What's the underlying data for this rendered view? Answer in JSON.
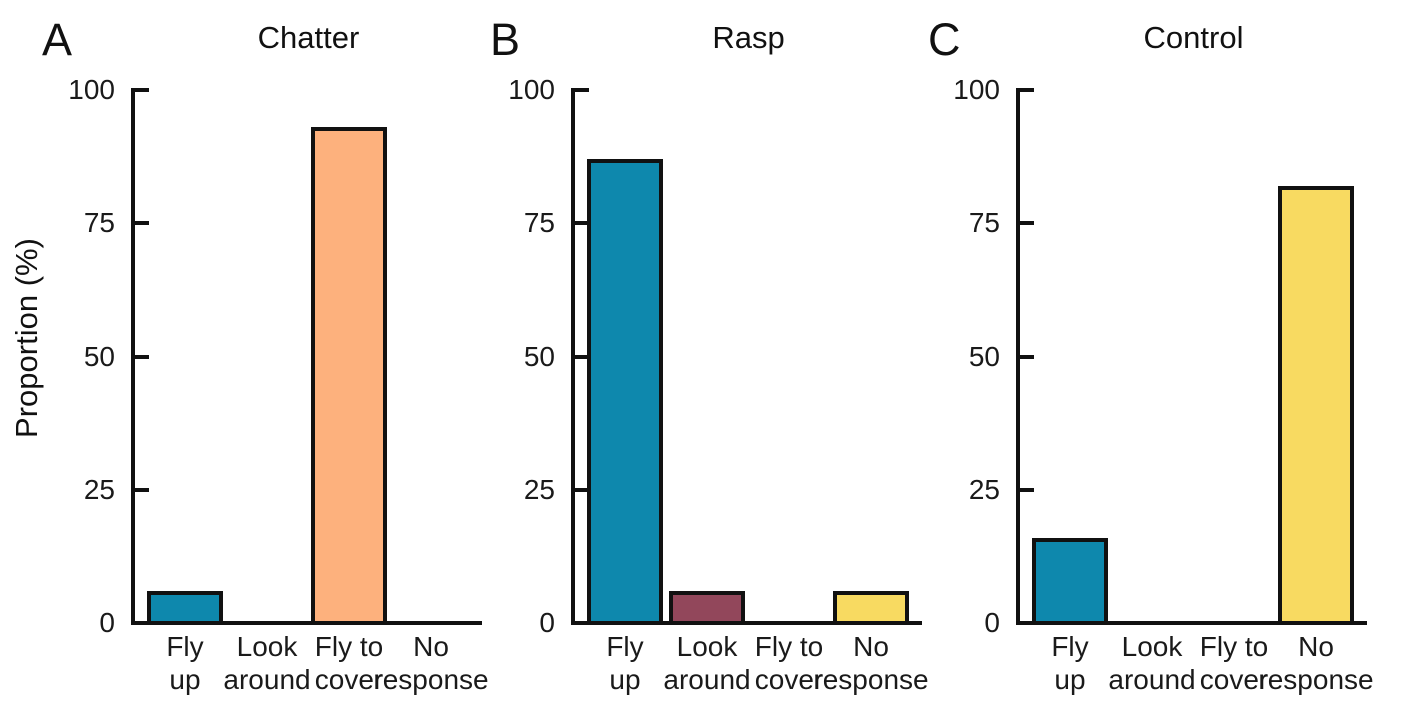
{
  "figure": {
    "ylabel": "Proportion (%)"
  },
  "colors": {
    "fly_up": "#0e88ad",
    "look_around": "#92475b",
    "fly_to_cover": "#fdb17d",
    "no_response": "#f8da61",
    "axis": "#111111",
    "text": "#1a1a1a",
    "background": "#ffffff"
  },
  "chart_data": [
    {
      "type": "bar",
      "panel_letter": "A",
      "title": "Chatter",
      "categories": [
        "Fly up",
        "Look around",
        "Fly to cover",
        "No response"
      ],
      "category_label_lines": [
        [
          "Fly",
          "up"
        ],
        [
          "Look",
          "around"
        ],
        [
          "Fly to",
          "cover"
        ],
        [
          "No",
          "response"
        ]
      ],
      "values": [
        6,
        0,
        93,
        0
      ],
      "bar_colors": [
        "#0e88ad",
        "#92475b",
        "#fdb17d",
        "#f8da61"
      ],
      "xlabel": "",
      "ylabel": "Proportion (%)",
      "yticks": [
        0,
        25,
        50,
        75,
        100
      ],
      "ylim": [
        0,
        100
      ],
      "grid": false,
      "legend": "none"
    },
    {
      "type": "bar",
      "panel_letter": "B",
      "title": "Rasp",
      "categories": [
        "Fly up",
        "Look around",
        "Fly to cover",
        "No response"
      ],
      "category_label_lines": [
        [
          "Fly",
          "up"
        ],
        [
          "Look",
          "around"
        ],
        [
          "Fly to",
          "cover"
        ],
        [
          "No",
          "response"
        ]
      ],
      "values": [
        87,
        6,
        0,
        6
      ],
      "bar_colors": [
        "#0e88ad",
        "#92475b",
        "#fdb17d",
        "#f8da61"
      ],
      "xlabel": "",
      "ylabel": "Proportion (%)",
      "yticks": [
        0,
        25,
        50,
        75,
        100
      ],
      "ylim": [
        0,
        100
      ],
      "grid": false,
      "legend": "none"
    },
    {
      "type": "bar",
      "panel_letter": "C",
      "title": "Control",
      "categories": [
        "Fly up",
        "Look around",
        "Fly to cover",
        "No response"
      ],
      "category_label_lines": [
        [
          "Fly",
          "up"
        ],
        [
          "Look",
          "around"
        ],
        [
          "Fly to",
          "cover"
        ],
        [
          "No",
          "response"
        ]
      ],
      "values": [
        16,
        0,
        0,
        82
      ],
      "bar_colors": [
        "#0e88ad",
        "#92475b",
        "#fdb17d",
        "#f8da61"
      ],
      "xlabel": "",
      "ylabel": "Proportion (%)",
      "yticks": [
        0,
        25,
        50,
        75,
        100
      ],
      "ylim": [
        0,
        100
      ],
      "grid": false,
      "legend": "none"
    }
  ]
}
